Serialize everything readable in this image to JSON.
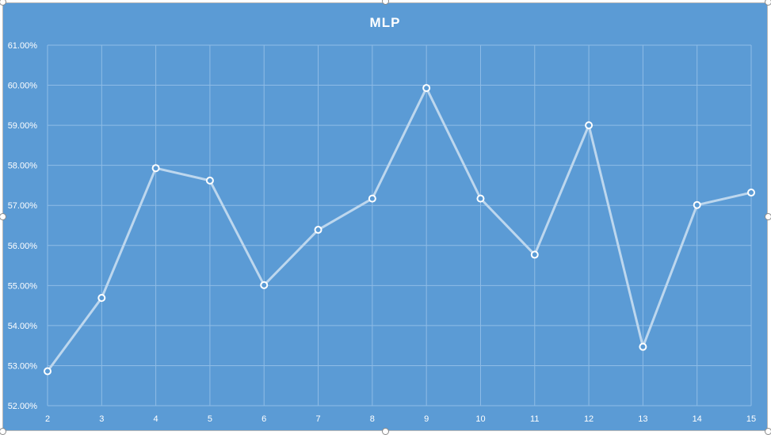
{
  "chart_data": {
    "type": "line",
    "title": "MLP",
    "x": [
      2,
      3,
      4,
      5,
      6,
      7,
      8,
      9,
      10,
      11,
      12,
      13,
      14,
      15
    ],
    "series": [
      {
        "values": [
          52.86,
          54.69,
          57.93,
          57.62,
          55.01,
          56.39,
          57.17,
          59.93,
          57.17,
          55.77,
          59.0,
          53.47,
          57.01,
          57.32
        ]
      }
    ],
    "y_ticks": [
      "52.00%",
      "53.00%",
      "54.00%",
      "55.00%",
      "56.00%",
      "57.00%",
      "58.00%",
      "59.00%",
      "60.00%",
      "61.00%"
    ],
    "ylim": [
      52,
      61
    ],
    "xlim": [
      2,
      15
    ],
    "grid": true,
    "colors": {
      "background": "#5b9bd5",
      "line": "#bdd7ee",
      "marker_fill": "#5b9bd5",
      "marker_stroke": "#ffffff",
      "grid": "#8fbce6",
      "text": "#ffffff"
    }
  }
}
